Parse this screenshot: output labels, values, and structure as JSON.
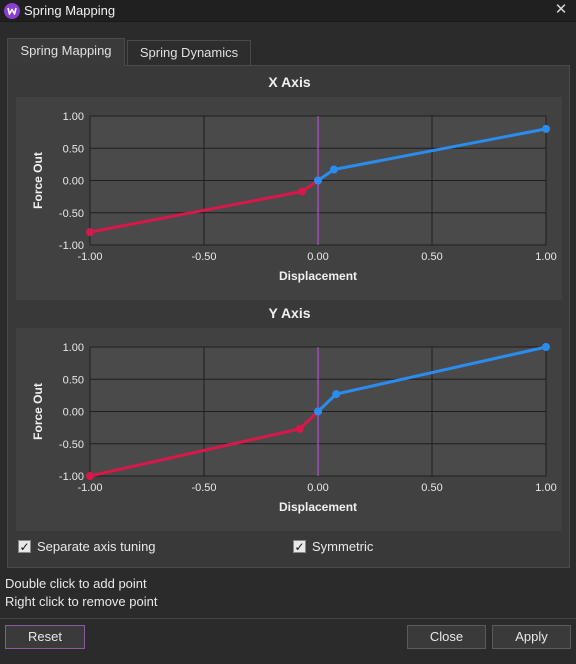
{
  "window": {
    "title": "Spring Mapping",
    "icon": "app-logo-icon",
    "close_icon": "close-icon"
  },
  "tabs": [
    {
      "label": "Spring Mapping",
      "active": true
    },
    {
      "label": "Spring Dynamics",
      "active": false
    }
  ],
  "colors": {
    "negative_curve": "#d8174a",
    "positive_curve": "#2b8cf0",
    "center_line": "#b44ad8",
    "grid": "#1e1e1e",
    "plot_bg": "#4a4a4a"
  },
  "chart_data": [
    {
      "type": "line",
      "title": "X Axis",
      "xlabel": "Displacement",
      "ylabel": "Force Out",
      "xlim": [
        -1,
        1
      ],
      "ylim": [
        -1,
        1
      ],
      "xticks": [
        "-1.00",
        "-0.50",
        "0.00",
        "0.50",
        "1.00"
      ],
      "yticks": [
        "1.00",
        "0.50",
        "0.00",
        "-0.50",
        "-1.00"
      ],
      "grid": true,
      "series": [
        {
          "x": [
            -1.0,
            -0.07,
            0.0
          ],
          "y": [
            -0.8,
            -0.17,
            0.0
          ],
          "color": "#d8174a"
        },
        {
          "x": [
            0.0,
            0.07,
            1.0
          ],
          "y": [
            0.0,
            0.17,
            0.8
          ],
          "color": "#2b8cf0"
        }
      ]
    },
    {
      "type": "line",
      "title": "Y Axis",
      "xlabel": "Displacement",
      "ylabel": "Force Out",
      "xlim": [
        -1,
        1
      ],
      "ylim": [
        -1,
        1
      ],
      "xticks": [
        "-1.00",
        "-0.50",
        "0.00",
        "0.50",
        "1.00"
      ],
      "yticks": [
        "1.00",
        "0.50",
        "0.00",
        "-0.50",
        "-1.00"
      ],
      "grid": true,
      "series": [
        {
          "x": [
            -1.0,
            -0.08,
            0.0
          ],
          "y": [
            -1.0,
            -0.27,
            0.0
          ],
          "color": "#d8174a"
        },
        {
          "x": [
            0.0,
            0.08,
            1.0
          ],
          "y": [
            0.0,
            0.27,
            1.0
          ],
          "color": "#2b8cf0"
        }
      ]
    }
  ],
  "options": [
    {
      "label": "Separate axis tuning",
      "checked": true
    },
    {
      "label": "Symmetric",
      "checked": true
    }
  ],
  "hints": [
    "Double click to add point",
    "Right click to remove point"
  ],
  "buttons": {
    "reset": "Reset",
    "close": "Close",
    "apply": "Apply"
  }
}
